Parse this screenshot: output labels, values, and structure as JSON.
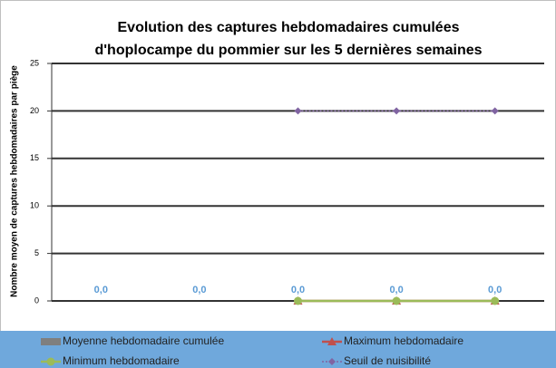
{
  "chart_data": {
    "type": "bar",
    "title": [
      "Evolution des captures hebdomadaires cumulées",
      "d'hoplocampe du pommier sur les 5 dernières semaines"
    ],
    "y_label": "Nombre moyen de captures hebdomadaires par piège",
    "categories": [
      null,
      null,
      null,
      null,
      null
    ],
    "ylim": [
      0,
      25
    ],
    "yticks": [
      0,
      5,
      10,
      15,
      20,
      25
    ],
    "grid": true,
    "legend": "bottom",
    "series": [
      {
        "name": "Moyenne hebdomadaire cumulée",
        "type": "bar",
        "color": "#7f7f7f",
        "values": [
          0,
          0,
          0,
          0,
          0
        ],
        "value_labels": [
          "0,0",
          "0,0",
          "0,0",
          "0,0",
          "0,0"
        ]
      },
      {
        "name": "Maximum hebdomadaire",
        "type": "line",
        "marker": "triangle",
        "color": "#c0504d",
        "values": [
          null,
          null,
          0,
          0,
          0
        ]
      },
      {
        "name": "Minimum hebdomadaire",
        "type": "line",
        "marker": "circle",
        "color": "#9bbb59",
        "values": [
          null,
          null,
          0,
          0,
          0
        ]
      },
      {
        "name": "Seuil de nuisibilité",
        "type": "line",
        "marker": "diamond",
        "dash": "dotted",
        "color": "#8064a2",
        "values": [
          null,
          null,
          20,
          20,
          20
        ]
      }
    ]
  }
}
